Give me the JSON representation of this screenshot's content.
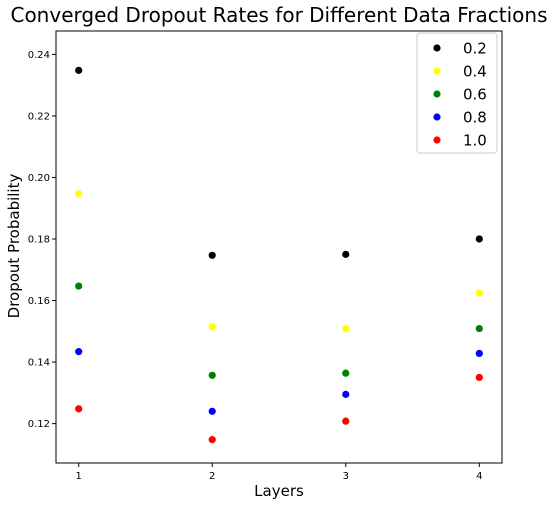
{
  "chart_data": {
    "type": "scatter",
    "title": "Converged Dropout Rates for Different Data Fractions",
    "xlabel": "Layers",
    "ylabel": "Dropout Probability",
    "x": [
      1,
      2,
      3,
      4
    ],
    "xlim": [
      0.83,
      4.17
    ],
    "ylim": [
      0.1072,
      0.2476
    ],
    "xticks": [
      "1",
      "2",
      "3",
      "4"
    ],
    "yticks": [
      "0.12",
      "0.14",
      "0.16",
      "0.18",
      "0.20",
      "0.22",
      "0.24"
    ],
    "yticks_values": [
      0.12,
      0.14,
      0.16,
      0.18,
      0.2,
      0.22,
      0.24
    ],
    "grid": false,
    "legend_position": "top-right",
    "series": [
      {
        "name": "0.2",
        "color": "#000000",
        "values": [
          0.2348,
          0.1747,
          0.175,
          0.18
        ]
      },
      {
        "name": "0.4",
        "color": "#ffff00",
        "values": [
          0.1947,
          0.1515,
          0.1509,
          0.1625
        ]
      },
      {
        "name": "0.6",
        "color": "#008000",
        "values": [
          0.1647,
          0.1357,
          0.1364,
          0.1509
        ]
      },
      {
        "name": "0.8",
        "color": "#0000ff",
        "values": [
          0.1434,
          0.124,
          0.1295,
          0.1428
        ]
      },
      {
        "name": "1.0",
        "color": "#ff0000",
        "values": [
          0.1248,
          0.1148,
          0.1208,
          0.135
        ]
      }
    ]
  }
}
